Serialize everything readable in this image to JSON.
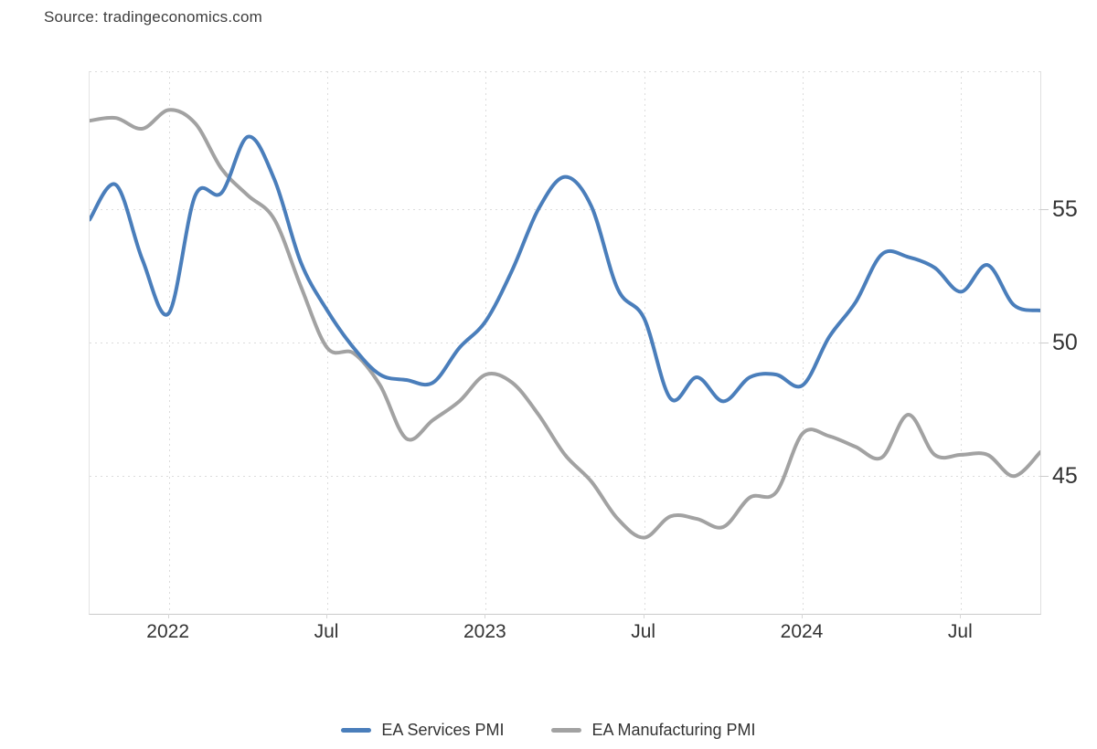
{
  "source_label": "Source: tradingeconomics.com",
  "colors": {
    "grid": "#dcdcdc",
    "axis_text": "#333333",
    "services_blue": "#4a7ebb",
    "manufacturing_gray": "#a2a2a2"
  },
  "chart_data": {
    "type": "line",
    "title": "",
    "xlabel": "",
    "ylabel": "",
    "x": [
      "2021-10",
      "2021-11",
      "2021-12",
      "2022-01",
      "2022-02",
      "2022-03",
      "2022-04",
      "2022-05",
      "2022-06",
      "2022-07",
      "2022-08",
      "2022-09",
      "2022-10",
      "2022-11",
      "2022-12",
      "2023-01",
      "2023-02",
      "2023-03",
      "2023-04",
      "2023-05",
      "2023-06",
      "2023-07",
      "2023-08",
      "2023-09",
      "2023-10",
      "2023-11",
      "2023-12",
      "2024-01",
      "2024-02",
      "2024-03",
      "2024-04",
      "2024-05",
      "2024-06",
      "2024-07",
      "2024-08",
      "2024-09",
      "2024-10"
    ],
    "series": [
      {
        "name": "EA Services PMI",
        "color": "#4a7ebb",
        "values": [
          54.6,
          55.9,
          53.1,
          51.1,
          55.5,
          55.6,
          57.7,
          56.1,
          53.0,
          51.2,
          49.8,
          48.8,
          48.6,
          48.5,
          49.8,
          50.8,
          52.7,
          55.0,
          56.2,
          55.1,
          52.0,
          50.9,
          47.9,
          48.7,
          47.8,
          48.7,
          48.8,
          48.4,
          50.2,
          51.5,
          53.3,
          53.2,
          52.8,
          51.9,
          52.9,
          51.4,
          51.2
        ]
      },
      {
        "name": "EA Manufacturing PMI",
        "color": "#a2a2a2",
        "values": [
          58.3,
          58.4,
          58.0,
          58.7,
          58.2,
          56.5,
          55.5,
          54.6,
          52.1,
          49.8,
          49.6,
          48.4,
          46.4,
          47.1,
          47.8,
          48.8,
          48.5,
          47.3,
          45.8,
          44.8,
          43.4,
          42.7,
          43.5,
          43.4,
          43.1,
          44.2,
          44.4,
          46.6,
          46.5,
          46.1,
          45.7,
          47.3,
          45.8,
          45.8,
          45.8,
          45.0,
          45.9
        ]
      }
    ],
    "x_ticks": [
      {
        "index": 3,
        "label": "2022"
      },
      {
        "index": 9,
        "label": "Jul"
      },
      {
        "index": 15,
        "label": "2023"
      },
      {
        "index": 21,
        "label": "Jul"
      },
      {
        "index": 27,
        "label": "2024"
      },
      {
        "index": 33,
        "label": "Jul"
      }
    ],
    "y_ticks": [
      55,
      50,
      45
    ],
    "ylim": [
      39.85,
      60.15
    ],
    "grid": "dotted",
    "legend_position": "bottom"
  }
}
